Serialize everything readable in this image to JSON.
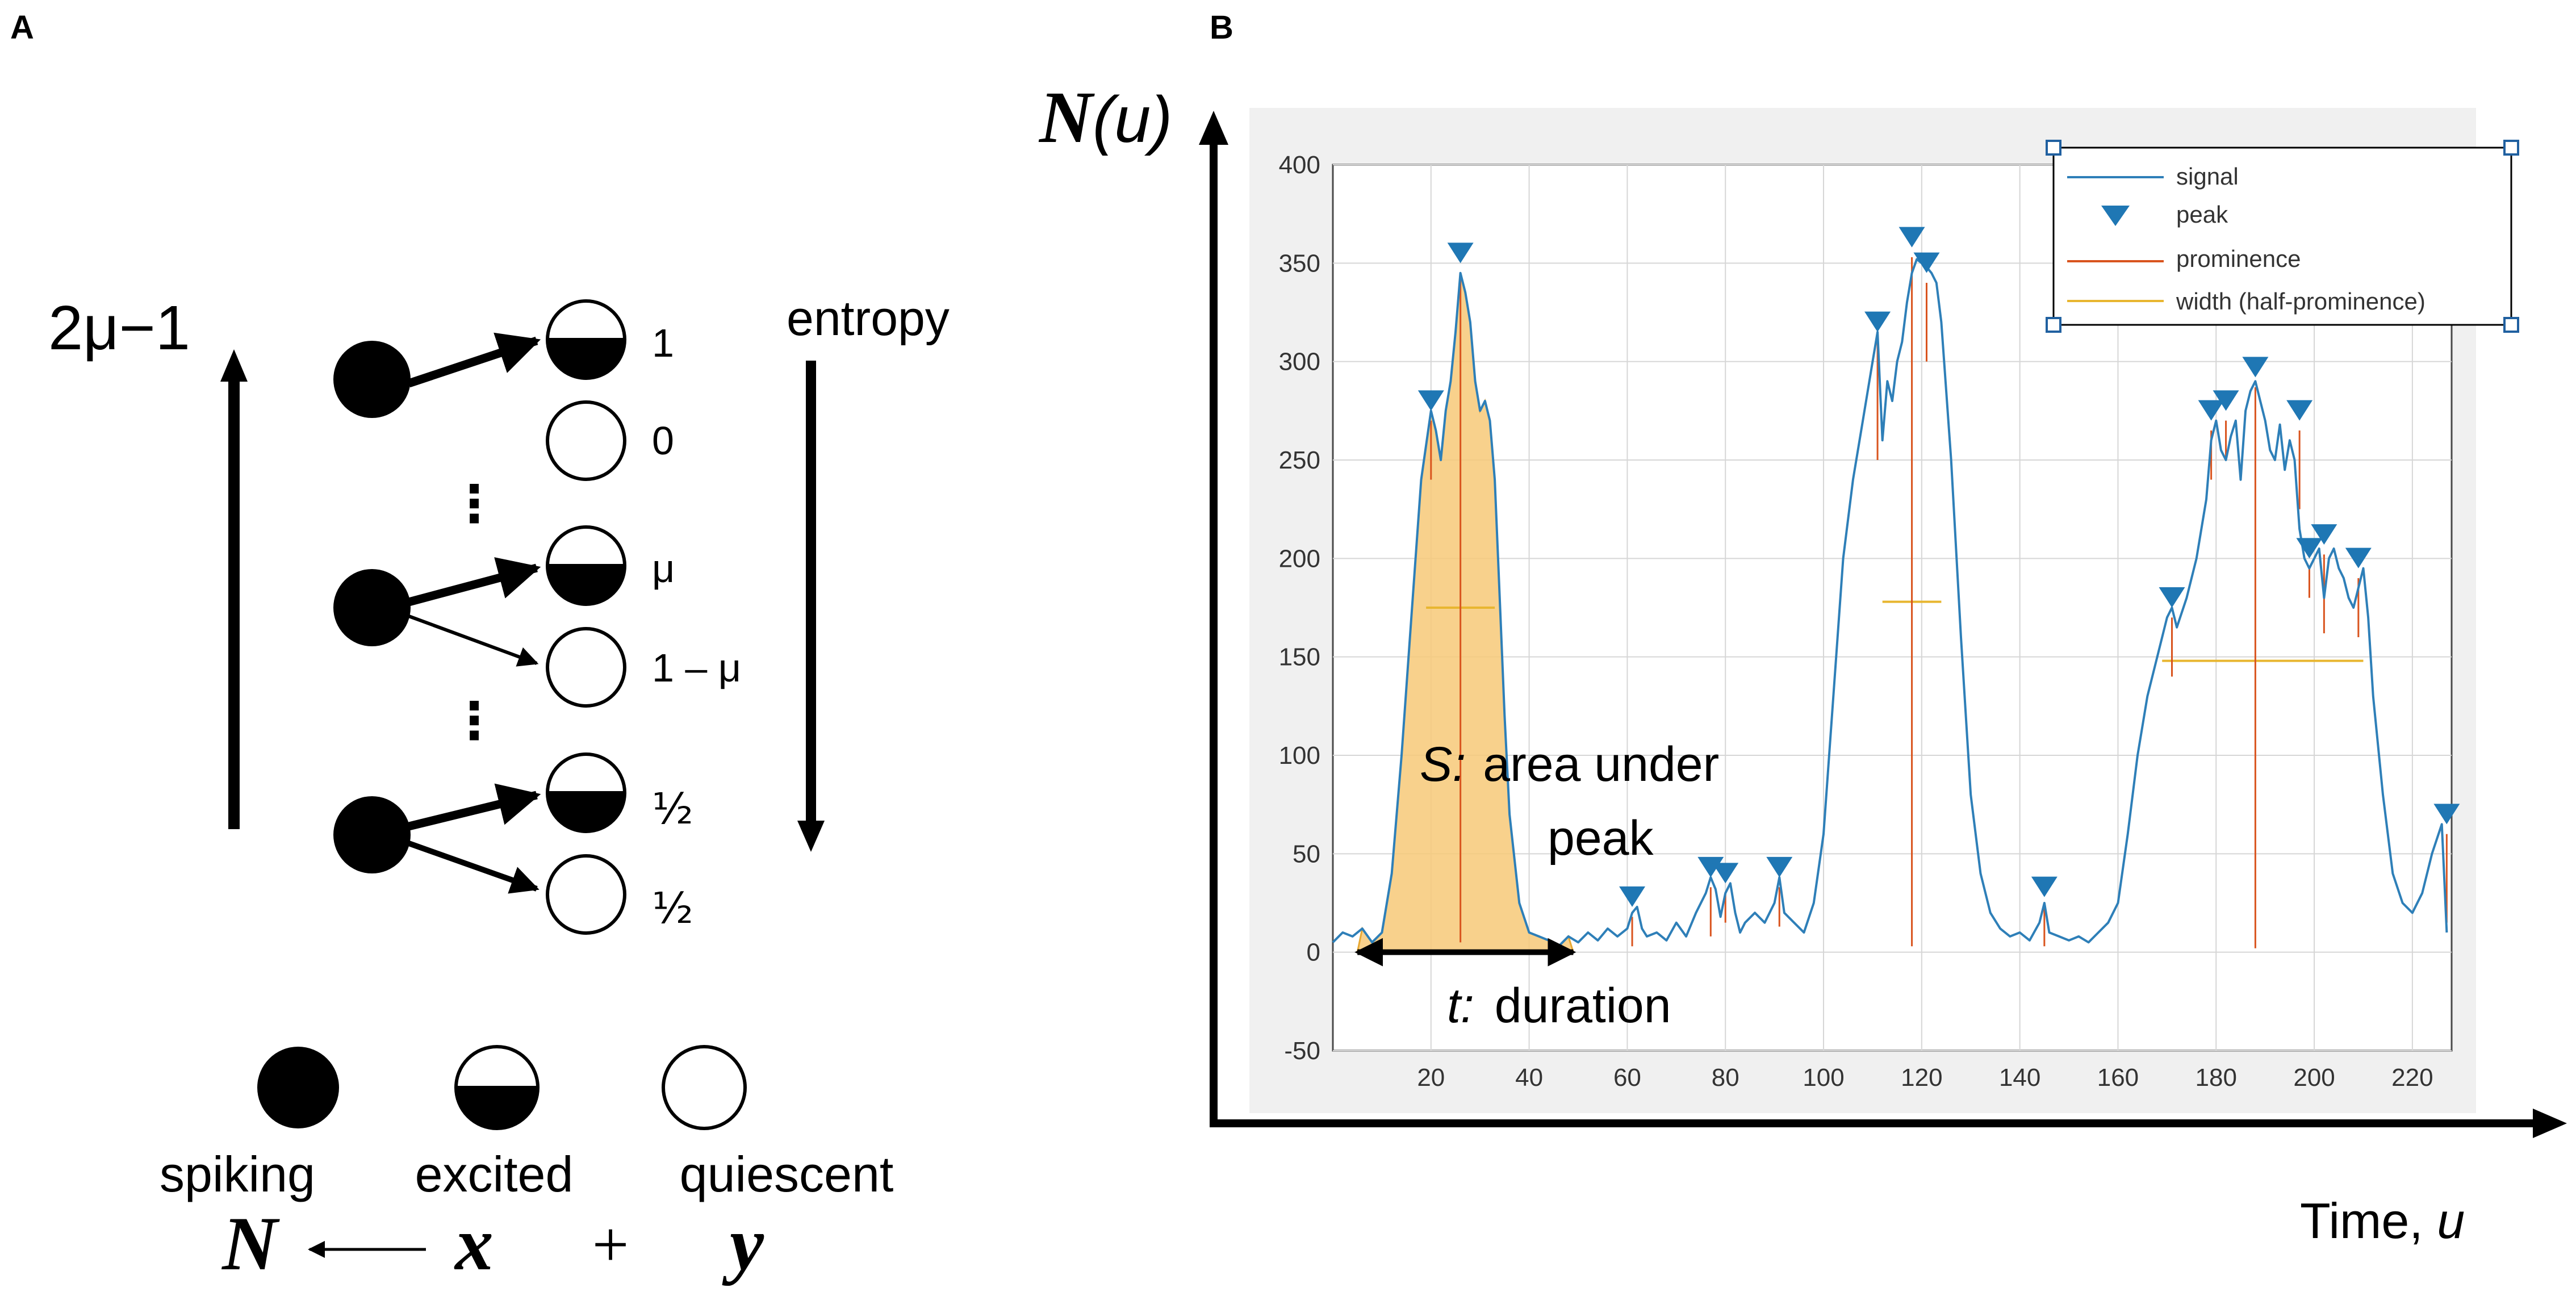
{
  "panel_a": {
    "label": "A",
    "left_axis_label": "2μ−1",
    "entropy_label": "entropy",
    "values": {
      "one": "1",
      "zero": "0",
      "mu": "μ",
      "one_minus_mu": "1 – μ",
      "half_top": "½",
      "half_bottom": "½"
    },
    "ellipsis": "⋮",
    "legend": {
      "spiking": "spiking",
      "excited": "excited",
      "quiescent": "quiescent"
    },
    "equation": {
      "n": "N",
      "arrow": "⟵",
      "x": "x",
      "plus": "+",
      "y": "y"
    }
  },
  "panel_b": {
    "label": "B",
    "y_axis_label_main": "N",
    "y_axis_label_arg": "(u)",
    "x_axis_label": "Time, ",
    "x_axis_label_var": "u",
    "area_label_var": "S:",
    "area_label_line1": "area under",
    "area_label_line2": "peak",
    "duration_label_var": "t:",
    "duration_label": "duration"
  },
  "chart_data": {
    "type": "line",
    "title": "",
    "xlabel": "Time, u",
    "ylabel": "N(u)",
    "xlim": [
      0,
      228
    ],
    "ylim": [
      -50,
      400
    ],
    "xticks": [
      20,
      40,
      60,
      80,
      100,
      120,
      140,
      160,
      180,
      200,
      220
    ],
    "yticks": [
      -50,
      0,
      50,
      100,
      150,
      200,
      250,
      300,
      350,
      400
    ],
    "grid": true,
    "legend_position": "top-right",
    "legend": [
      "signal",
      "peak",
      "prominence",
      "width (half-prominence)"
    ],
    "series": [
      {
        "name": "signal",
        "x": [
          0,
          2,
          4,
          6,
          8,
          10,
          12,
          14,
          16,
          18,
          20,
          21,
          22,
          23,
          24,
          25,
          26,
          27,
          28,
          29,
          30,
          31,
          32,
          33,
          34,
          35,
          36,
          38,
          40,
          42,
          44,
          46,
          48,
          50,
          52,
          54,
          56,
          58,
          60,
          61,
          62,
          63,
          64,
          66,
          68,
          70,
          72,
          74,
          76,
          77,
          78,
          79,
          80,
          81,
          82,
          83,
          84,
          86,
          88,
          90,
          91,
          92,
          94,
          96,
          98,
          100,
          102,
          104,
          106,
          108,
          110,
          111,
          112,
          113,
          114,
          115,
          116,
          117,
          118,
          119,
          120,
          121,
          122,
          123,
          124,
          126,
          128,
          130,
          132,
          134,
          136,
          138,
          140,
          142,
          144,
          145,
          146,
          148,
          150,
          152,
          154,
          156,
          158,
          160,
          162,
          164,
          166,
          168,
          170,
          171,
          172,
          174,
          176,
          178,
          179,
          180,
          181,
          182,
          183,
          184,
          185,
          186,
          187,
          188,
          189,
          190,
          191,
          192,
          193,
          194,
          195,
          196,
          197,
          198,
          199,
          200,
          201,
          202,
          203,
          204,
          205,
          206,
          207,
          208,
          209,
          210,
          211,
          212,
          214,
          216,
          218,
          220,
          222,
          224,
          226,
          227
        ],
        "values": [
          5,
          10,
          8,
          12,
          5,
          10,
          40,
          100,
          170,
          240,
          275,
          265,
          250,
          275,
          290,
          315,
          345,
          335,
          320,
          290,
          275,
          280,
          270,
          240,
          180,
          120,
          70,
          25,
          10,
          8,
          6,
          3,
          8,
          5,
          10,
          6,
          12,
          8,
          12,
          20,
          23,
          12,
          8,
          10,
          6,
          15,
          8,
          20,
          30,
          38,
          32,
          18,
          30,
          35,
          20,
          10,
          15,
          20,
          15,
          25,
          38,
          20,
          15,
          10,
          25,
          60,
          130,
          200,
          240,
          270,
          300,
          315,
          260,
          290,
          280,
          300,
          310,
          330,
          345,
          352,
          350,
          348,
          345,
          340,
          320,
          250,
          160,
          80,
          40,
          20,
          12,
          8,
          10,
          6,
          15,
          25,
          10,
          8,
          6,
          8,
          5,
          10,
          15,
          25,
          60,
          100,
          130,
          150,
          170,
          175,
          165,
          180,
          200,
          230,
          260,
          270,
          255,
          250,
          262,
          270,
          240,
          275,
          285,
          290,
          280,
          270,
          255,
          250,
          268,
          245,
          260,
          250,
          215,
          200,
          195,
          200,
          205,
          180,
          200,
          205,
          195,
          190,
          180,
          175,
          185,
          195,
          170,
          130,
          80,
          40,
          25,
          20,
          30,
          50,
          65,
          10
        ]
      },
      {
        "name": "peak",
        "x": [
          20,
          26,
          61,
          77,
          80,
          91,
          111,
          118,
          121,
          145,
          171,
          179,
          182,
          188,
          197,
          199,
          202,
          209,
          227
        ],
        "values": [
          275,
          350,
          23,
          38,
          35,
          38,
          315,
          358,
          345,
          28,
          175,
          270,
          275,
          292,
          270,
          200,
          207,
          195,
          65
        ]
      },
      {
        "name": "prominence",
        "x": [
          20,
          26,
          61,
          77,
          80,
          91,
          111,
          118,
          121,
          145,
          171,
          179,
          182,
          188,
          197,
          199,
          202,
          209,
          227
        ],
        "values": [
          30,
          340,
          15,
          25,
          15,
          20,
          60,
          350,
          40,
          20,
          30,
          25,
          20,
          285,
          40,
          15,
          40,
          30,
          45
        ]
      },
      {
        "name": "width (half-prominence)",
        "segments": [
          [
            19,
            33,
            175
          ],
          [
            112,
            124,
            178
          ],
          [
            169,
            210,
            148
          ]
        ]
      }
    ],
    "shaded_region": {
      "x_range": [
        5,
        49
      ],
      "label": "S: area under peak"
    },
    "duration_arrow": {
      "x_range": [
        5,
        49
      ],
      "y": 0,
      "label": "t: duration"
    }
  },
  "colors": {
    "signal": "#2e7fb8",
    "peak": "#1f77b4",
    "prominence": "#d9541e",
    "width": "#e8b630",
    "shade": "#f7c978",
    "plot_bg": "#f0f0f0",
    "grid": "#d6d6d6"
  }
}
